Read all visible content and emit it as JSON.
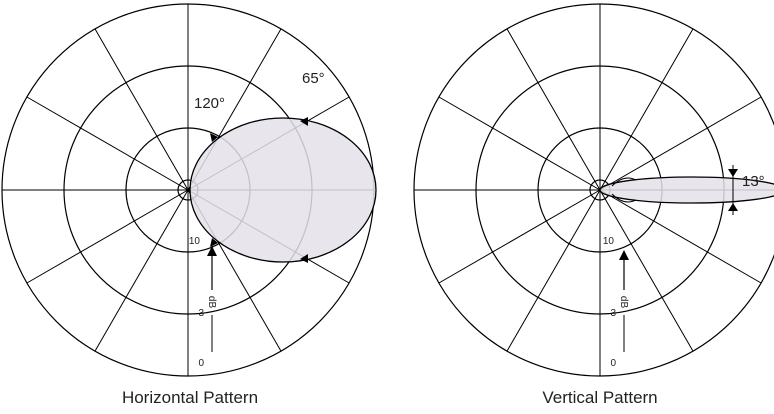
{
  "diagrams": [
    {
      "title": "Horizontal Pattern",
      "beamwidths": [
        "120°",
        "65°"
      ],
      "rings": [
        "10",
        "3",
        "0"
      ],
      "unit": "dB"
    },
    {
      "title": "Vertical Pattern",
      "beamwidths": [
        "13°"
      ],
      "rings": [
        "10",
        "3",
        "0"
      ],
      "unit": "dB"
    }
  ]
}
